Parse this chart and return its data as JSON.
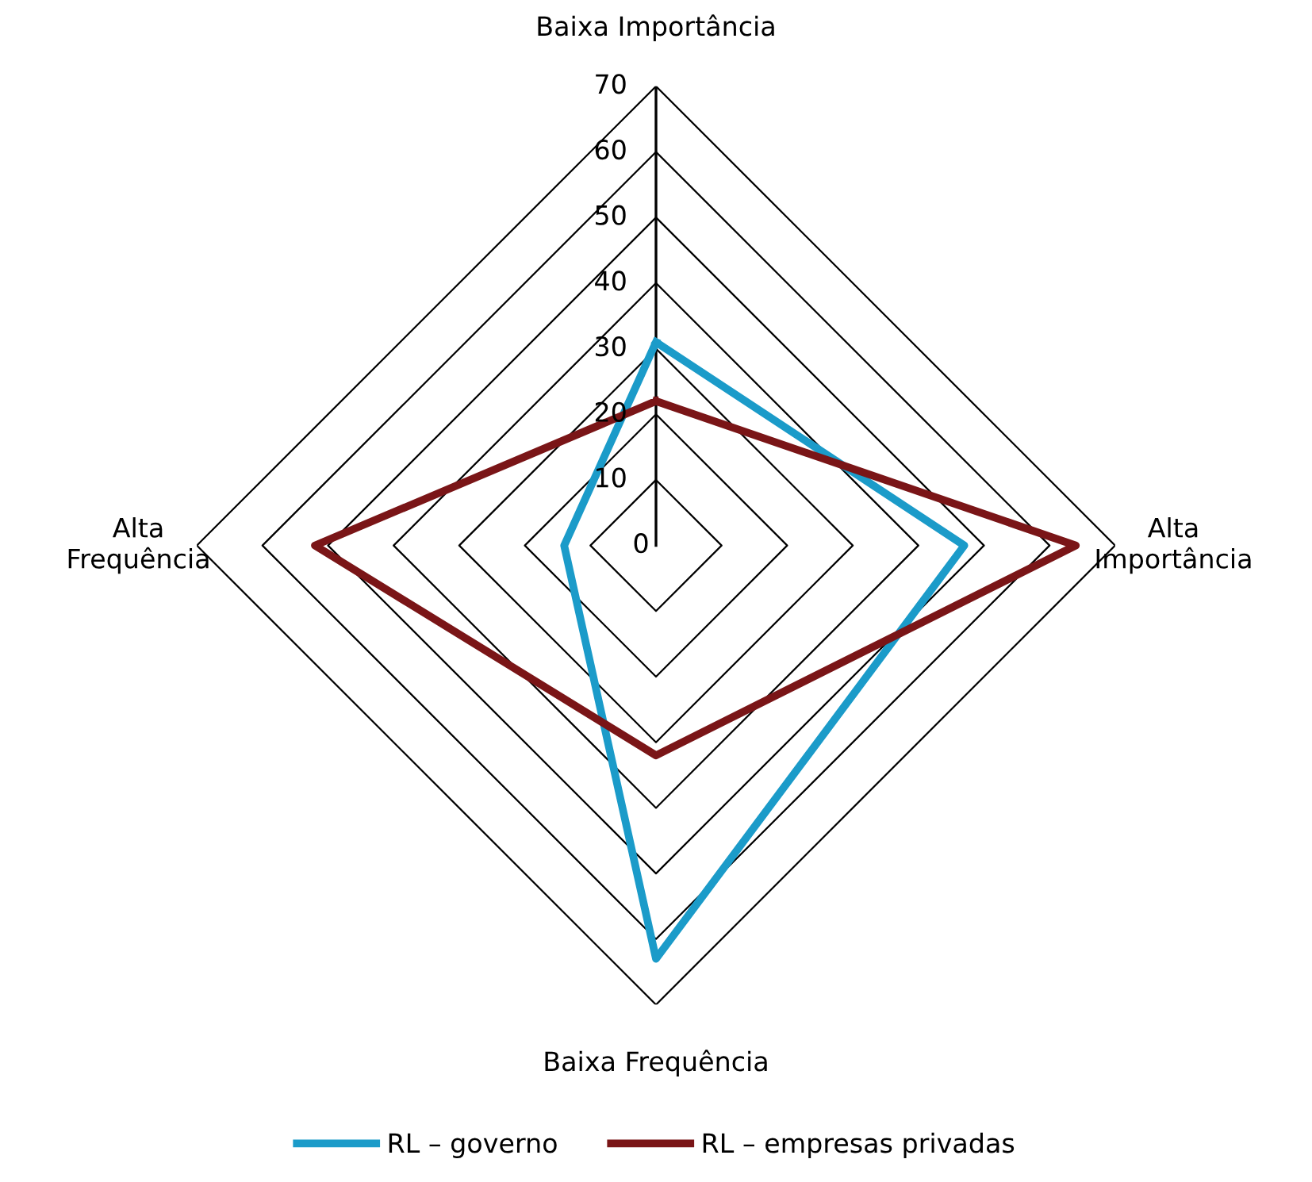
{
  "chart_data": {
    "type": "radar",
    "categories": [
      "Baixa Importância",
      "Alta Importância",
      "Baixa Frequência",
      "Alta Frequência"
    ],
    "series": [
      {
        "name": "RL – governo",
        "color": "#1b9bc9",
        "values": [
          31,
          47,
          63,
          14
        ]
      },
      {
        "name": "RL – empresas privadas",
        "color": "#7a1517",
        "values": [
          22,
          64,
          32,
          52
        ]
      }
    ],
    "ylim": [
      0,
      70
    ],
    "yticks": [
      0,
      10,
      20,
      30,
      40,
      50,
      60,
      70
    ],
    "grid": true,
    "legend": "bottom",
    "marker": "none",
    "line_style": "solid"
  }
}
